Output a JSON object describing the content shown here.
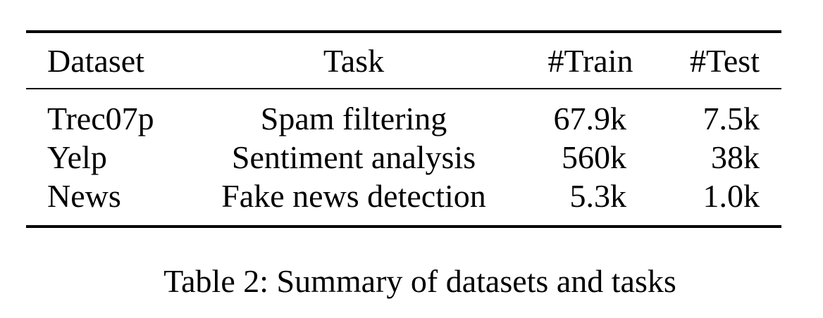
{
  "table": {
    "headers": {
      "dataset": "Dataset",
      "task": "Task",
      "train": "#Train",
      "test": "#Test"
    },
    "rows": [
      {
        "dataset": "Trec07p",
        "task": "Spam filtering",
        "train": "67.9k",
        "test": "7.5k"
      },
      {
        "dataset": "Yelp",
        "task": "Sentiment analysis",
        "train": "560k",
        "test": "38k"
      },
      {
        "dataset": "News",
        "task": "Fake news detection",
        "train": "5.3k",
        "test": "1.0k"
      }
    ],
    "caption": "Table 2: Summary of datasets and tasks"
  }
}
